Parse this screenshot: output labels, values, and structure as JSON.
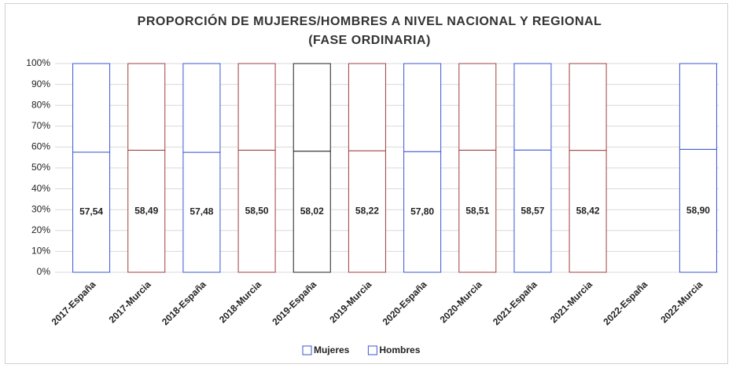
{
  "chart_data": {
    "type": "stacked_bar",
    "title": "PROPORCIÓN DE MUJERES/HOMBRES A NIVEL NACIONAL Y REGIONAL (FASE ORDINARIA)",
    "categories": [
      "2017-España",
      "2017-Murcia",
      "2018-España",
      "2018-Murcia",
      "2019-España",
      "2019-Murcia",
      "2020-España",
      "2020-Murcia",
      "2021-España",
      "2021-Murcia",
      "2022-España",
      "2022-Murcia"
    ],
    "edge_colors": [
      "#3a55d6",
      "#a03c3c",
      "#3a55d6",
      "#a03c3c",
      "#222222",
      "#a03c3c",
      "#3a55d6",
      "#a03c3c",
      "#3a55d6",
      "#a03c3c",
      "#3a55d6",
      "#3a55d6"
    ],
    "series": [
      {
        "name": "Mujeres",
        "color": "#ffffff",
        "edgecolor": "#3a55d6",
        "values": [
          57.54,
          58.49,
          57.48,
          58.5,
          58.02,
          58.22,
          57.8,
          58.51,
          58.57,
          58.42,
          null,
          58.9
        ],
        "value_labels": [
          "57,54",
          "58,49",
          "57,48",
          "58,50",
          "58,02",
          "58,22",
          "57,80",
          "58,51",
          "58,57",
          "58,42",
          null,
          "58,90"
        ]
      },
      {
        "name": "Hombres",
        "color": "#ffffff",
        "edgecolor": "#3a55d6",
        "values": [
          42.46,
          41.51,
          42.52,
          41.5,
          41.98,
          41.78,
          42.2,
          41.49,
          41.43,
          41.58,
          null,
          41.1
        ]
      }
    ],
    "ylim": [
      0,
      100
    ],
    "yticks": [
      {
        "value": 0,
        "label": "0%"
      },
      {
        "value": 10,
        "label": "10%"
      },
      {
        "value": 20,
        "label": "20%"
      },
      {
        "value": 30,
        "label": "30%"
      },
      {
        "value": 40,
        "label": "40%"
      },
      {
        "value": 50,
        "label": "50%"
      },
      {
        "value": 60,
        "label": "60%"
      },
      {
        "value": 70,
        "label": "70%"
      },
      {
        "value": 80,
        "label": "80%"
      },
      {
        "value": 90,
        "label": "90%"
      },
      {
        "value": 100,
        "label": "100%"
      }
    ],
    "grid": true,
    "legend": "bottom"
  }
}
